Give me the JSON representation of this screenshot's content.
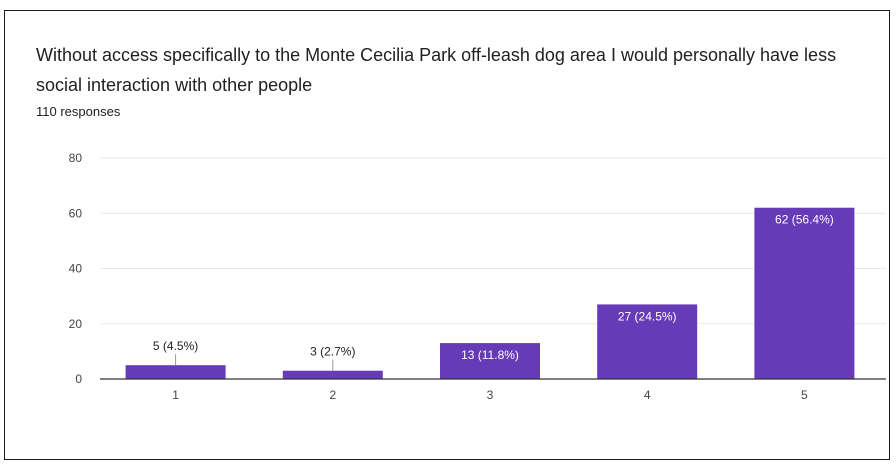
{
  "header": {
    "title": "Without access specifically to the Monte Cecilia Park off-leash dog area I would personally have less social interaction with other people",
    "responses": "110 responses"
  },
  "colors": {
    "bar": "#673ab7",
    "grid": "#e8e8e8",
    "axis": "#333333",
    "label_inside": "#ffffff",
    "label_outside": "#202124"
  },
  "chart_data": {
    "type": "bar",
    "categories": [
      "1",
      "2",
      "3",
      "4",
      "5"
    ],
    "values": [
      5,
      3,
      13,
      27,
      62
    ],
    "data_labels": [
      "5 (4.5%)",
      "3 (2.7%)",
      "13 (11.8%)",
      "27 (24.5%)",
      "62 (56.4%)"
    ],
    "yticks": [
      0,
      20,
      40,
      60,
      80
    ],
    "ylim": [
      0,
      80
    ],
    "grid": true,
    "title": "Without access specifically to the Monte Cecilia Park off-leash dog area I would personally have less social interaction with other people",
    "subtitle": "110 responses"
  }
}
